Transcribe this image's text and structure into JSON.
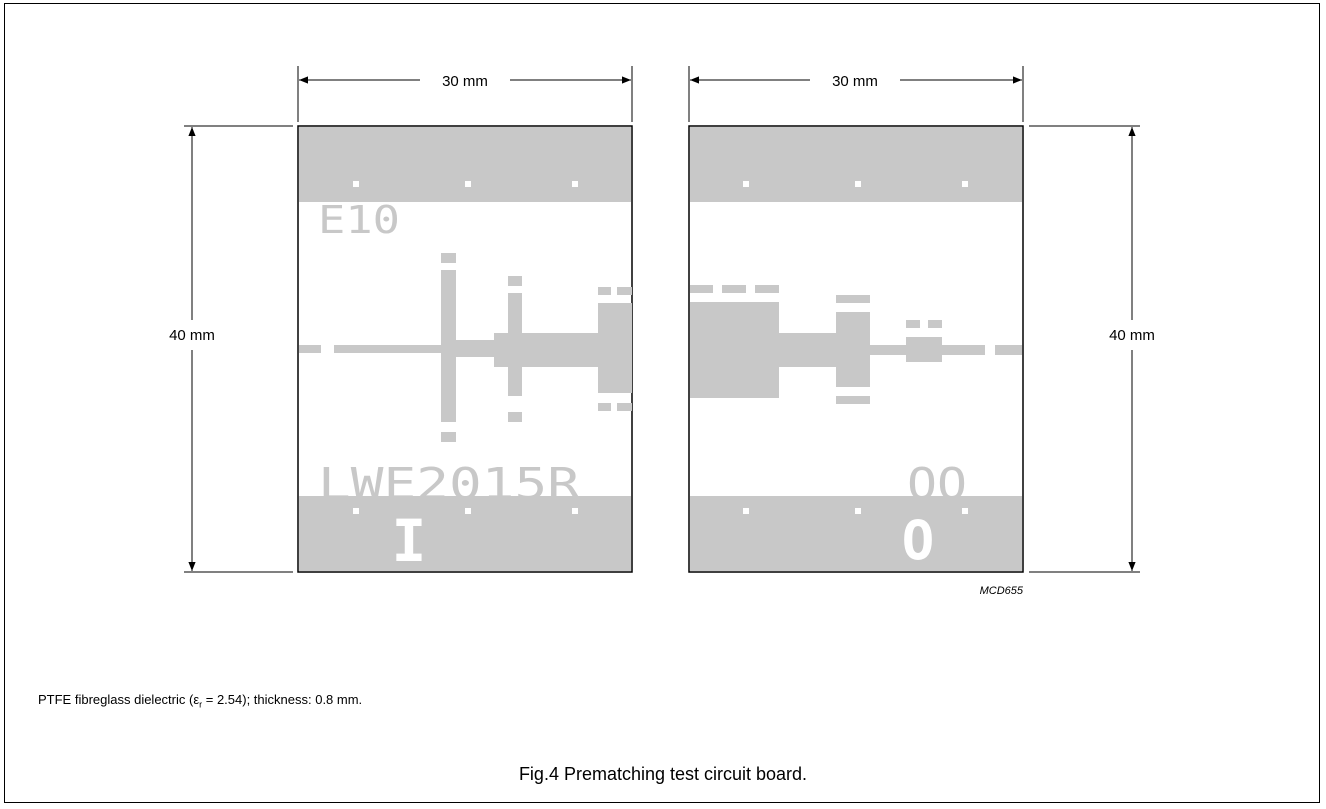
{
  "dimensions": {
    "left_width": "30 mm",
    "right_width": "30 mm",
    "left_height": "40 mm",
    "right_height": "40 mm"
  },
  "board_input": {
    "marking_top": "E10",
    "marking_bottom": "LWE2015R",
    "port_label": "I"
  },
  "board_output": {
    "marking_top": "OO",
    "port_label": "O"
  },
  "figure_code": "MCD655",
  "note": {
    "prefix": "PTFE fibreglass dielectric (ε",
    "subscript": "r",
    "suffix": " = 2.54); thickness: 0.8 mm."
  },
  "caption": "Fig.4  Prematching test circuit board.",
  "colors": {
    "copper": "#c8c8c8",
    "line": "#000000",
    "background": "#ffffff"
  }
}
